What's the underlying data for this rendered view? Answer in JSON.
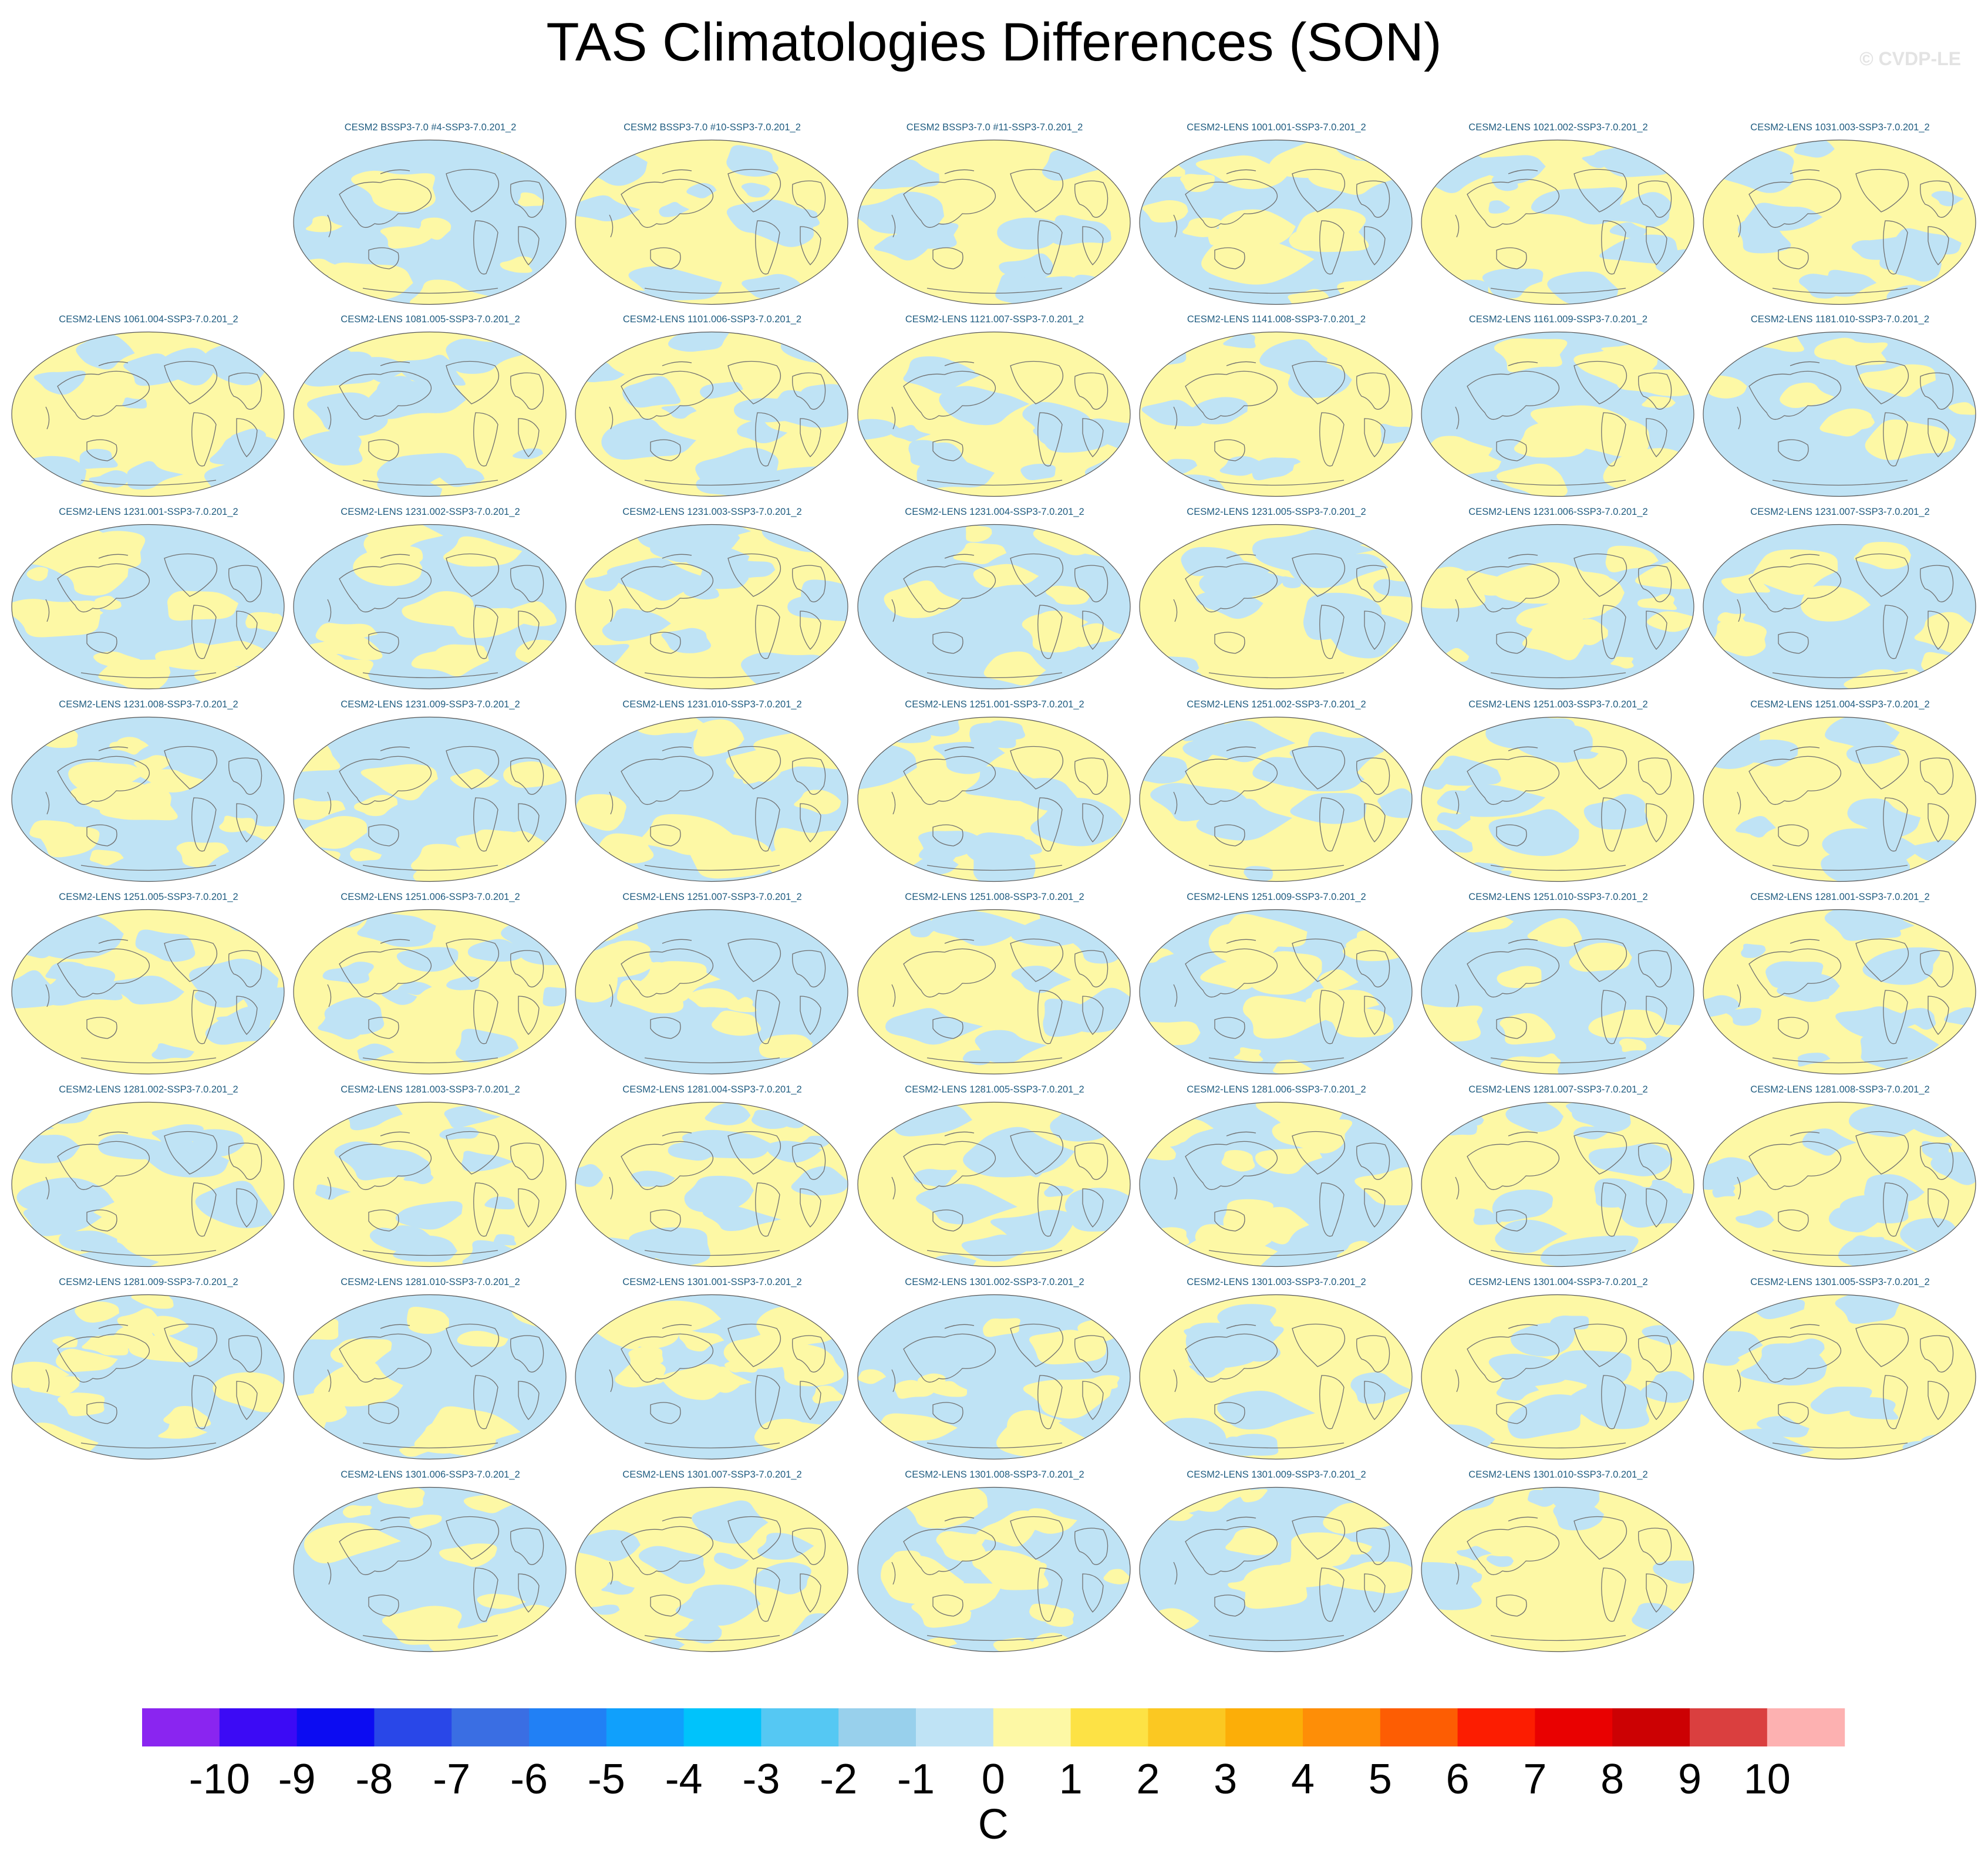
{
  "title": "TAS Climatologies Differences (SON)",
  "copyright": "© CVDP-LE",
  "chart_data": {
    "type": "map-panel-grid",
    "title": "TAS Climatologies Differences (SON)",
    "variable": "TAS",
    "season": "SON",
    "projection": "global robinson-style",
    "units": "C",
    "panel_rows": [
      [
        "CESM2 BSSP3-7.0 #4-SSP3-7.0.201_2",
        "CESM2 BSSP3-7.0 #10-SSP3-7.0.201_2",
        "CESM2 BSSP3-7.0 #11-SSP3-7.0.201_2",
        "CESM2-LENS 1001.001-SSP3-7.0.201_2",
        "CESM2-LENS 1021.002-SSP3-7.0.201_2",
        "CESM2-LENS 1031.003-SSP3-7.0.201_2"
      ],
      [
        "CESM2-LENS 1061.004-SSP3-7.0.201_2",
        "CESM2-LENS 1081.005-SSP3-7.0.201_2",
        "CESM2-LENS 1101.006-SSP3-7.0.201_2",
        "CESM2-LENS 1121.007-SSP3-7.0.201_2",
        "CESM2-LENS 1141.008-SSP3-7.0.201_2",
        "CESM2-LENS 1161.009-SSP3-7.0.201_2",
        "CESM2-LENS 1181.010-SSP3-7.0.201_2"
      ],
      [
        "CESM2-LENS 1231.001-SSP3-7.0.201_2",
        "CESM2-LENS 1231.002-SSP3-7.0.201_2",
        "CESM2-LENS 1231.003-SSP3-7.0.201_2",
        "CESM2-LENS 1231.004-SSP3-7.0.201_2",
        "CESM2-LENS 1231.005-SSP3-7.0.201_2",
        "CESM2-LENS 1231.006-SSP3-7.0.201_2",
        "CESM2-LENS 1231.007-SSP3-7.0.201_2"
      ],
      [
        "CESM2-LENS 1231.008-SSP3-7.0.201_2",
        "CESM2-LENS 1231.009-SSP3-7.0.201_2",
        "CESM2-LENS 1231.010-SSP3-7.0.201_2",
        "CESM2-LENS 1251.001-SSP3-7.0.201_2",
        "CESM2-LENS 1251.002-SSP3-7.0.201_2",
        "CESM2-LENS 1251.003-SSP3-7.0.201_2",
        "CESM2-LENS 1251.004-SSP3-7.0.201_2"
      ],
      [
        "CESM2-LENS 1251.005-SSP3-7.0.201_2",
        "CESM2-LENS 1251.006-SSP3-7.0.201_2",
        "CESM2-LENS 1251.007-SSP3-7.0.201_2",
        "CESM2-LENS 1251.008-SSP3-7.0.201_2",
        "CESM2-LENS 1251.009-SSP3-7.0.201_2",
        "CESM2-LENS 1251.010-SSP3-7.0.201_2",
        "CESM2-LENS 1281.001-SSP3-7.0.201_2"
      ],
      [
        "CESM2-LENS 1281.002-SSP3-7.0.201_2",
        "CESM2-LENS 1281.003-SSP3-7.0.201_2",
        "CESM2-LENS 1281.004-SSP3-7.0.201_2",
        "CESM2-LENS 1281.005-SSP3-7.0.201_2",
        "CESM2-LENS 1281.006-SSP3-7.0.201_2",
        "CESM2-LENS 1281.007-SSP3-7.0.201_2",
        "CESM2-LENS 1281.008-SSP3-7.0.201_2"
      ],
      [
        "CESM2-LENS 1281.009-SSP3-7.0.201_2",
        "CESM2-LENS 1281.010-SSP3-7.0.201_2",
        "CESM2-LENS 1301.001-SSP3-7.0.201_2",
        "CESM2-LENS 1301.002-SSP3-7.0.201_2",
        "CESM2-LENS 1301.003-SSP3-7.0.201_2",
        "CESM2-LENS 1301.004-SSP3-7.0.201_2",
        "CESM2-LENS 1301.005-SSP3-7.0.201_2"
      ],
      [
        "CESM2-LENS 1301.006-SSP3-7.0.201_2",
        "CESM2-LENS 1301.007-SSP3-7.0.201_2",
        "CESM2-LENS 1301.008-SSP3-7.0.201_2",
        "CESM2-LENS 1301.009-SSP3-7.0.201_2",
        "CESM2-LENS 1301.010-SSP3-7.0.201_2"
      ]
    ],
    "panel_values": "field differences rendered only as color: nearly all grid cells fall in the -1..0 (light blue) and 0..1 (light yellow) bins",
    "colorbar": {
      "label": "C",
      "tick_labels": [
        "-10",
        "-9",
        "-8",
        "-7",
        "-6",
        "-5",
        "-4",
        "-3",
        "-2",
        "-1",
        "0",
        "1",
        "2",
        "3",
        "4",
        "5",
        "6",
        "7",
        "8",
        "9",
        "10"
      ],
      "colors": [
        "#8a25f0",
        "#3c0af5",
        "#0c0cf2",
        "#2947e8",
        "#3a6ee3",
        "#2180f5",
        "#10a0fc",
        "#00c3fb",
        "#55c8f3",
        "#98d0ec",
        "#bfe3f5",
        "#fdf8a5",
        "#fde245",
        "#fbc822",
        "#fcae08",
        "#fe8e07",
        "#fd5d03",
        "#fc1d01",
        "#e90101",
        "#cc0103",
        "#da3f3f",
        "#fdb1b1"
      ]
    }
  }
}
